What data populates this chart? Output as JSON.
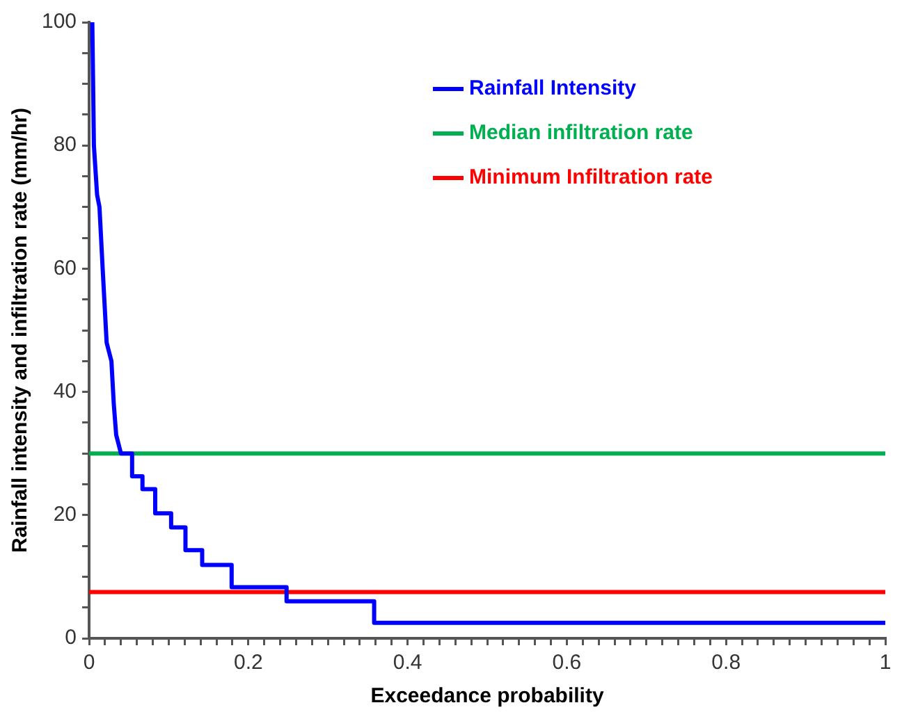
{
  "chart_data": {
    "type": "line",
    "xlabel": "Exceedance probability",
    "ylabel": "Rainfall intensity and infiltration rate (mm/hr)",
    "xlim": [
      0,
      1
    ],
    "ylim": [
      0,
      100
    ],
    "xticks": [
      0,
      {
        "value": 0.02,
        "label": null
      },
      {
        "value": 0.04,
        "label": null
      },
      {
        "value": 0.06,
        "label": null
      },
      {
        "value": 0.08,
        "label": null
      },
      {
        "value": 0.1,
        "label": null
      },
      {
        "value": 0.12,
        "label": null
      },
      {
        "value": 0.14,
        "label": null
      },
      {
        "value": 0.16,
        "label": null
      },
      {
        "value": 0.18,
        "label": null
      },
      0.2,
      {
        "value": 0.22,
        "label": null
      },
      {
        "value": 0.24,
        "label": null
      },
      {
        "value": 0.26,
        "label": null
      },
      {
        "value": 0.28,
        "label": null
      },
      {
        "value": 0.3,
        "label": null
      },
      {
        "value": 0.32,
        "label": null
      },
      {
        "value": 0.34,
        "label": null
      },
      {
        "value": 0.36,
        "label": null
      },
      {
        "value": 0.38,
        "label": null
      },
      0.4,
      {
        "value": 0.42,
        "label": null
      },
      {
        "value": 0.44,
        "label": null
      },
      {
        "value": 0.46,
        "label": null
      },
      {
        "value": 0.48,
        "label": null
      },
      {
        "value": 0.5,
        "label": null
      },
      {
        "value": 0.52,
        "label": null
      },
      {
        "value": 0.54,
        "label": null
      },
      {
        "value": 0.56,
        "label": null
      },
      {
        "value": 0.58,
        "label": null
      },
      0.6,
      {
        "value": 0.62,
        "label": null
      },
      {
        "value": 0.64,
        "label": null
      },
      {
        "value": 0.66,
        "label": null
      },
      {
        "value": 0.68,
        "label": null
      },
      {
        "value": 0.7,
        "label": null
      },
      {
        "value": 0.72,
        "label": null
      },
      {
        "value": 0.74,
        "label": null
      },
      {
        "value": 0.76,
        "label": null
      },
      {
        "value": 0.78,
        "label": null
      },
      0.8,
      {
        "value": 0.82,
        "label": null
      },
      {
        "value": 0.84,
        "label": null
      },
      {
        "value": 0.86,
        "label": null
      },
      {
        "value": 0.88,
        "label": null
      },
      {
        "value": 0.9,
        "label": null
      },
      {
        "value": 0.92,
        "label": null
      },
      {
        "value": 0.94,
        "label": null
      },
      {
        "value": 0.96,
        "label": null
      },
      {
        "value": 0.98,
        "label": null
      },
      1
    ],
    "yticks": [
      0,
      {
        "value": 5,
        "label": null
      },
      {
        "value": 10,
        "label": null
      },
      {
        "value": 15,
        "label": null
      },
      20,
      {
        "value": 25,
        "label": null
      },
      {
        "value": 30,
        "label": null
      },
      {
        "value": 35,
        "label": null
      },
      40,
      {
        "value": 45,
        "label": null
      },
      {
        "value": 50,
        "label": null
      },
      {
        "value": 55,
        "label": null
      },
      60,
      {
        "value": 65,
        "label": null
      },
      {
        "value": 70,
        "label": null
      },
      {
        "value": 75,
        "label": null
      },
      80,
      {
        "value": 85,
        "label": null
      },
      {
        "value": 90,
        "label": null
      },
      {
        "value": 95,
        "label": null
      },
      100
    ],
    "grid": false,
    "legend": "top right",
    "marker": "none",
    "series": [
      {
        "name": "Rainfall Intensity",
        "color": "#0000ff",
        "x": [
          0.004,
          0.006,
          0.01,
          0.013,
          0.017,
          0.022,
          0.026,
          0.028,
          0.031,
          0.034,
          0.04,
          0.054,
          0.054,
          0.067,
          0.067,
          0.083,
          0.083,
          0.103,
          0.103,
          0.121,
          0.121,
          0.142,
          0.142,
          0.179,
          0.179,
          0.248,
          0.248,
          0.358,
          0.358,
          1
        ],
        "values": [
          100,
          80,
          72,
          70,
          60,
          48,
          46,
          45,
          38,
          33,
          30,
          30,
          26.3,
          26.3,
          24.2,
          24.2,
          20.3,
          20.3,
          18,
          18,
          14.3,
          14.3,
          11.9,
          11.9,
          8.3,
          8.3,
          6,
          6,
          2.5,
          2.5
        ]
      },
      {
        "name": "Median infiltration rate",
        "color": "#00b050",
        "x": [
          0,
          1
        ],
        "values": [
          30,
          30
        ]
      },
      {
        "name": "Minimum Infiltration rate",
        "color": "#ff0000",
        "x": [
          0,
          1
        ],
        "values": [
          7.5,
          7.5
        ]
      }
    ]
  }
}
